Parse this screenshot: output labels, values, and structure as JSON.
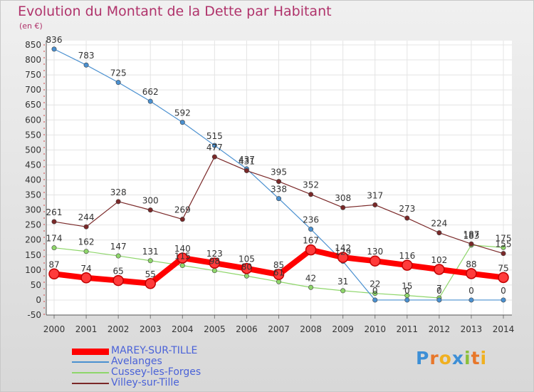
{
  "header": {
    "title": "Evolution du Montant de la Dette par Habitant",
    "unit": "(en €)"
  },
  "logo": {
    "text": "Proxiti"
  },
  "chart_data": {
    "type": "line",
    "title": "Evolution du Montant de la Dette par Habitant",
    "ylabel": "(en €)",
    "xlabel": "",
    "ylim": [
      -50,
      850
    ],
    "yticks": [
      -50,
      0,
      50,
      100,
      150,
      200,
      250,
      300,
      350,
      400,
      450,
      500,
      550,
      600,
      650,
      700,
      750,
      800,
      850
    ],
    "x": [
      "2000",
      "2001",
      "2002",
      "2003",
      "2004",
      "2005",
      "2006",
      "2007",
      "2008",
      "2009",
      "2010",
      "2011",
      "2012",
      "2013",
      "2014"
    ],
    "grid": true,
    "legend_position": "bottom-left",
    "series": [
      {
        "name": "MAREY-SUR-TILLE",
        "color": "#ff0000",
        "values": [
          87,
          74,
          65,
          55,
          140,
          123,
          105,
          85,
          167,
          142,
          130,
          116,
          102,
          88,
          75
        ],
        "labels": [
          "87",
          "74",
          "65",
          "55",
          "140",
          "123",
          "105",
          "85",
          "167",
          "142",
          "130",
          "116",
          "102",
          "88",
          "75"
        ]
      },
      {
        "name": "Avelanges",
        "color": "#4a90d0",
        "values": [
          836,
          783,
          725,
          662,
          592,
          515,
          437,
          338,
          236,
          129,
          0,
          0,
          0,
          0,
          0
        ],
        "labels": [
          "836",
          "783",
          "725",
          "662",
          "592",
          "515",
          "437",
          "338",
          "236",
          "129",
          "0",
          "0",
          "0",
          "0",
          "0"
        ]
      },
      {
        "name": "Cussey-les-Forges",
        "color": "#8ed66a",
        "values": [
          174,
          162,
          147,
          131,
          115,
          98,
          80,
          61,
          42,
          31,
          22,
          15,
          7,
          183,
          175
        ],
        "labels": [
          "174",
          "162",
          "147",
          "131",
          "115",
          "98",
          "80",
          "61",
          "42",
          "31",
          "22",
          "15",
          "7",
          "183",
          "175"
        ]
      },
      {
        "name": "Villey-sur-Tille",
        "color": "#7a2828",
        "values": [
          261,
          244,
          328,
          300,
          269,
          477,
          431,
          395,
          352,
          308,
          317,
          273,
          224,
          187,
          155
        ],
        "labels": [
          "261",
          "244",
          "328",
          "300",
          "269",
          "477",
          "431",
          "395",
          "352",
          "308",
          "317",
          "273",
          "224",
          "187",
          "155"
        ]
      }
    ]
  }
}
